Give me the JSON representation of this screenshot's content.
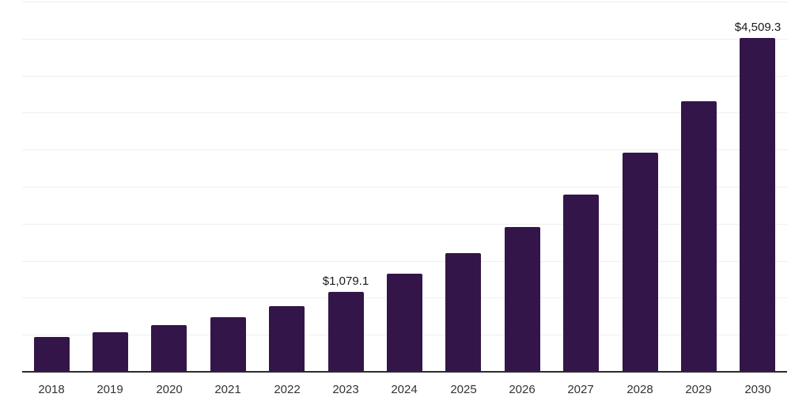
{
  "chart_data": {
    "type": "bar",
    "title": "",
    "xlabel": "",
    "ylabel": "",
    "categories": [
      "2018",
      "2019",
      "2020",
      "2021",
      "2022",
      "2023",
      "2024",
      "2025",
      "2026",
      "2027",
      "2028",
      "2029",
      "2030"
    ],
    "values": [
      465,
      535,
      625,
      740,
      885,
      1079.1,
      1322,
      1600,
      1955,
      2390,
      2955,
      3650,
      4509.3
    ],
    "data_labels": [
      "",
      "",
      "",
      "",
      "",
      "$1,079.1",
      "",
      "",
      "",
      "",
      "",
      "",
      "$4,509.3"
    ],
    "ylim": [
      0,
      5000
    ],
    "gridline_step": 500,
    "grid": true,
    "legend": false,
    "colors": {
      "bar": "#341549",
      "grid": "#efefef",
      "axis": "#2b2b2b",
      "tick_label": "#333333",
      "data_label": "#1a1a1a",
      "background": "#ffffff"
    }
  }
}
